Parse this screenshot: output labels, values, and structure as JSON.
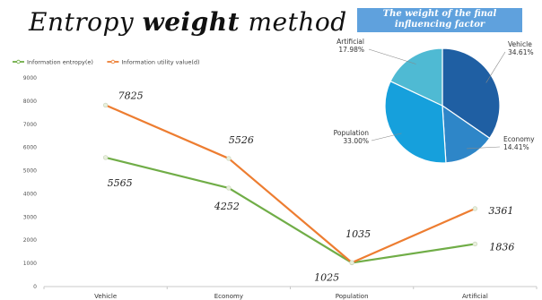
{
  "slide": {
    "title_part1": "Entropy",
    "title_part2": "weight",
    "title_part3": "method"
  },
  "chart_data": [
    {
      "type": "line",
      "title": "",
      "categories": [
        "Vehicle",
        "Economy",
        "Population",
        "Artificial"
      ],
      "ylim": [
        0,
        9000
      ],
      "yticks": [
        0,
        1000,
        2000,
        3000,
        4000,
        5000,
        6000,
        7000,
        8000,
        9000
      ],
      "grid": false,
      "legend_position": "top-left",
      "series": [
        {
          "name": "Information entropy(e)",
          "color": "#70ad47",
          "values": [
            5565,
            4252,
            1025,
            1836
          ]
        },
        {
          "name": "Information utility value(d)",
          "color": "#ed7d31",
          "values": [
            7825,
            5526,
            1035,
            3361
          ]
        }
      ],
      "data_labels": [
        {
          "series": 1,
          "index": 0,
          "text": "7825"
        },
        {
          "series": 0,
          "index": 0,
          "text": "5565"
        },
        {
          "series": 1,
          "index": 1,
          "text": "5526"
        },
        {
          "series": 0,
          "index": 1,
          "text": "4252"
        },
        {
          "series": 1,
          "index": 2,
          "text": "1035"
        },
        {
          "series": 0,
          "index": 2,
          "text": "1025"
        },
        {
          "series": 1,
          "index": 3,
          "text": "3361"
        },
        {
          "series": 0,
          "index": 3,
          "text": "1836"
        }
      ]
    },
    {
      "type": "pie",
      "title": "The weight of the final influencing factor",
      "slices": [
        {
          "label": "Vehicle",
          "percent_label": "34.61%",
          "value": 34.61,
          "color": "#1f5fa3"
        },
        {
          "label": "Economy",
          "percent_label": "14.41%",
          "value": 14.41,
          "color": "#2e86c8"
        },
        {
          "label": "Population",
          "percent_label": "33.00%",
          "value": 33.0,
          "color": "#16a0dc"
        },
        {
          "label": "Artificial",
          "percent_label": "17.98%",
          "value": 17.98,
          "color": "#4fbad3"
        }
      ]
    }
  ]
}
